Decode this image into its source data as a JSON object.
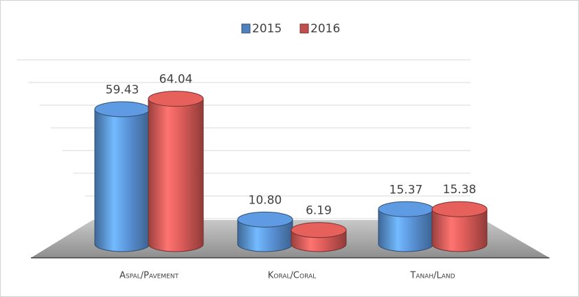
{
  "chart_data": {
    "type": "bar3d",
    "categories": [
      "Aspal/Pavement",
      "Koral/Coral",
      "Tanah/Land"
    ],
    "series": [
      {
        "name": "2015",
        "color": "#4f81bd",
        "values": [
          59.43,
          10.8,
          15.37
        ],
        "value_labels": [
          "59.43",
          "10.80",
          "15.37"
        ]
      },
      {
        "name": "2016",
        "color": "#c0504d",
        "values": [
          64.04,
          6.19,
          15.38
        ],
        "value_labels": [
          "64.04",
          "6.19",
          "15.38"
        ]
      }
    ],
    "ylim": [
      0,
      70
    ],
    "yticks": [
      0,
      10,
      20,
      30,
      40,
      50,
      60,
      70
    ],
    "grid": true,
    "legend": "top"
  }
}
